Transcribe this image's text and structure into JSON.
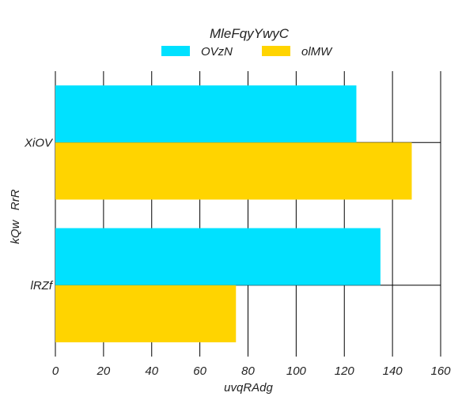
{
  "chart_data": {
    "type": "bar",
    "orientation": "horizontal",
    "title": "MleFqyYwyC",
    "xlabel": "uvqRAdg",
    "ylabel": "kQw   RrR",
    "categories": [
      "XiOV",
      "lRZf"
    ],
    "series": [
      {
        "name": "OVzN",
        "values": [
          125,
          135
        ],
        "color": "#00e1ff"
      },
      {
        "name": "olMW",
        "values": [
          148,
          75
        ],
        "color": "#ffd400"
      }
    ],
    "xlim": [
      0,
      160
    ],
    "xticks": [
      0,
      20,
      40,
      60,
      80,
      100,
      120,
      140,
      160
    ],
    "grid": "vertical",
    "legend_position": "top"
  }
}
